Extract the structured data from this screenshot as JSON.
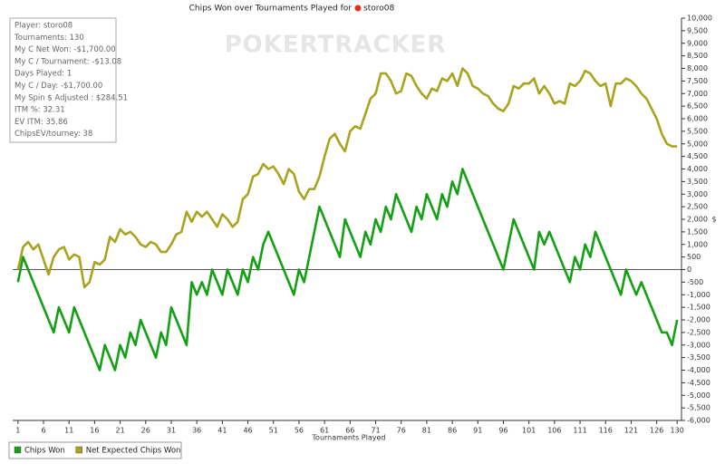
{
  "chart_data": {
    "type": "line",
    "title": "Chips Won over Tournaments Played for",
    "title_player": "storo08",
    "watermark": "POKERTRACKER",
    "x_label": "Tournaments Played",
    "y_label": "$",
    "info_box": [
      "Player: storo08",
      "Tournaments: 130",
      "My C Net Won: -$1,700.00",
      "My C / Tournament: -$13.08",
      "Days Played: 1",
      "My C / Day: -$1,700.00",
      "My Spin $ Adjusted : $284.51",
      "ITM %: 32.31",
      "EV ITM: 35.86",
      "ChipsEV/tourney: 38"
    ],
    "x": [
      1,
      2,
      3,
      4,
      5,
      6,
      7,
      8,
      9,
      10,
      11,
      12,
      13,
      14,
      15,
      16,
      17,
      18,
      19,
      20,
      21,
      22,
      23,
      24,
      25,
      26,
      27,
      28,
      29,
      30,
      31,
      32,
      33,
      34,
      35,
      36,
      37,
      38,
      39,
      40,
      41,
      42,
      43,
      44,
      45,
      46,
      47,
      48,
      49,
      50,
      51,
      52,
      53,
      54,
      55,
      56,
      57,
      58,
      59,
      60,
      61,
      62,
      63,
      64,
      65,
      66,
      67,
      68,
      69,
      70,
      71,
      72,
      73,
      74,
      75,
      76,
      77,
      78,
      79,
      80,
      81,
      82,
      83,
      84,
      85,
      86,
      87,
      88,
      89,
      90,
      91,
      92,
      93,
      94,
      95,
      96,
      97,
      98,
      99,
      100,
      101,
      102,
      103,
      104,
      105,
      106,
      107,
      108,
      109,
      110,
      111,
      112,
      113,
      114,
      115,
      116,
      117,
      118,
      119,
      120,
      121,
      122,
      123,
      124,
      125,
      126,
      127,
      128,
      129,
      130
    ],
    "xlim": [
      0.5,
      130.5
    ],
    "xticks": [
      1,
      6,
      11,
      16,
      21,
      26,
      31,
      36,
      41,
      46,
      51,
      56,
      61,
      66,
      71,
      76,
      81,
      86,
      91,
      96,
      101,
      106,
      111,
      116,
      121,
      126,
      130
    ],
    "ylim": [
      -6000,
      10000
    ],
    "yticks": [
      {
        "value": -6000,
        "label": "-6,000"
      },
      {
        "value": -5500,
        "label": "-5,500"
      },
      {
        "value": -5000,
        "label": "-5,000"
      },
      {
        "value": -4500,
        "label": "-4,500"
      },
      {
        "value": -4000,
        "label": "-4,000"
      },
      {
        "value": -3500,
        "label": "-3,500"
      },
      {
        "value": -3000,
        "label": "-3,000"
      },
      {
        "value": -2500,
        "label": "-2,500"
      },
      {
        "value": -2000,
        "label": "-2,000"
      },
      {
        "value": -1500,
        "label": "-1,500"
      },
      {
        "value": -1000,
        "label": "-1,000"
      },
      -500,
      0,
      500,
      {
        "value": 1000,
        "label": "1,000"
      },
      {
        "value": 1500,
        "label": "1,500"
      },
      {
        "value": 2000,
        "label": "2,000"
      },
      {
        "value": 2500,
        "label": "2,500"
      },
      {
        "value": 3000,
        "label": "3,000"
      },
      {
        "value": 3500,
        "label": "3,500"
      },
      {
        "value": 4000,
        "label": "4,000"
      },
      {
        "value": 4500,
        "label": "4,500"
      },
      {
        "value": 5000,
        "label": "5,000"
      },
      {
        "value": 5500,
        "label": "5,500"
      },
      {
        "value": 6000,
        "label": "6,000"
      },
      {
        "value": 6500,
        "label": "6,500"
      },
      {
        "value": 7000,
        "label": "7,000"
      },
      {
        "value": 7500,
        "label": "7,500"
      },
      {
        "value": 8000,
        "label": "8,000"
      },
      {
        "value": 8500,
        "label": "8,500"
      },
      {
        "value": 9000,
        "label": "9,000"
      },
      {
        "value": 9500,
        "label": "9,500"
      },
      {
        "value": 10000,
        "label": "10,000"
      }
    ],
    "series": [
      {
        "name": "Chips Won",
        "color": "#14a014",
        "values": [
          -500,
          500,
          0,
          -500,
          -1000,
          -1500,
          -2000,
          -2500,
          -1500,
          -2000,
          -2500,
          -1500,
          -2000,
          -2500,
          -3000,
          -3500,
          -4000,
          -3000,
          -3500,
          -4000,
          -3000,
          -3500,
          -2500,
          -3000,
          -2000,
          -2500,
          -3000,
          -3500,
          -2500,
          -3000,
          -1500,
          -2000,
          -2500,
          -3000,
          -500,
          -1000,
          -500,
          -1000,
          0,
          -500,
          -1000,
          0,
          -500,
          -1000,
          0,
          -500,
          500,
          0,
          1000,
          1500,
          1000,
          500,
          0,
          -500,
          -1000,
          0,
          -500,
          500,
          1500,
          2500,
          2000,
          1500,
          1000,
          500,
          2000,
          1500,
          1000,
          500,
          1500,
          1000,
          2000,
          1500,
          2500,
          2000,
          3000,
          2500,
          2000,
          1500,
          2500,
          2000,
          3000,
          2500,
          2000,
          3000,
          2500,
          3500,
          3000,
          4000,
          3500,
          3000,
          2500,
          2000,
          1500,
          1000,
          500,
          0,
          1000,
          2000,
          1500,
          1000,
          500,
          0,
          1500,
          1000,
          1500,
          1000,
          500,
          0,
          -500,
          500,
          0,
          1000,
          500,
          1500,
          1000,
          500,
          0,
          -500,
          -1000,
          0,
          -500,
          -1000,
          -500,
          -1000,
          -1500,
          -2000,
          -2500,
          -2500,
          -3000,
          -2000
        ]
      },
      {
        "name": "Net Expected Chips Won",
        "color": "#a8a420",
        "values": [
          0,
          900,
          1100,
          800,
          1000,
          400,
          -200,
          500,
          800,
          900,
          400,
          600,
          500,
          -700,
          -500,
          300,
          200,
          400,
          1300,
          1100,
          1600,
          1400,
          1500,
          1300,
          1000,
          900,
          1100,
          1000,
          700,
          700,
          1000,
          1400,
          1500,
          2300,
          1900,
          2300,
          2100,
          2300,
          2000,
          1700,
          2200,
          2000,
          1700,
          1900,
          2800,
          3000,
          3700,
          3800,
          4200,
          4000,
          4100,
          3800,
          3400,
          4000,
          3800,
          3100,
          2800,
          3200,
          3200,
          3700,
          4500,
          5200,
          5400,
          5000,
          4700,
          5500,
          5700,
          5600,
          6200,
          6800,
          7000,
          7800,
          7800,
          7500,
          7000,
          7100,
          7800,
          7700,
          7300,
          7000,
          6800,
          7200,
          7100,
          7600,
          7500,
          7800,
          7300,
          8000,
          7800,
          7300,
          7200,
          7000,
          6900,
          6600,
          6400,
          6300,
          6600,
          7300,
          7200,
          7400,
          7400,
          7600,
          7000,
          7300,
          7000,
          6600,
          6700,
          6600,
          7400,
          7300,
          7500,
          7900,
          7800,
          7500,
          7300,
          7400,
          6500,
          7400,
          7400,
          7600,
          7500,
          7300,
          7000,
          6800,
          6400,
          6000,
          5400,
          5000,
          4900,
          4900
        ]
      }
    ]
  }
}
